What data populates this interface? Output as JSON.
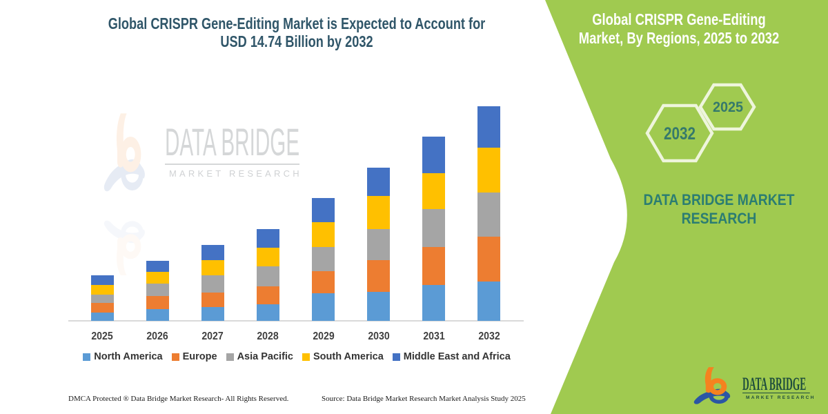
{
  "colors": {
    "panel-green": "#A0CA50",
    "title-teal": "#305669",
    "hex-year-teal": "#35796B",
    "brand-teal": "#2B7D72",
    "logo-orange": "#F5821F",
    "logo-blue": "#2B56A4",
    "logo-text-green": "#1E4D3D",
    "axis-gray": "#D9D9D9"
  },
  "main_title": {
    "line1": "Global CRISPR Gene-Editing Market is Expected to Account for",
    "line2": "USD 14.74 Billion by 2032"
  },
  "chart_data": {
    "type": "bar",
    "stacked": true,
    "unit": "USD Billion",
    "title": "Global CRISPR Gene-Editing Market is Expected to Account for USD 14.74 Billion by 2032",
    "categories": [
      "2025",
      "2026",
      "2027",
      "2028",
      "2029",
      "2030",
      "2031",
      "2032"
    ],
    "series": [
      {
        "name": "North America",
        "color": "#5B9BD5",
        "values": [
          0.57,
          0.81,
          0.95,
          1.14,
          1.9,
          1.99,
          2.46,
          2.7
        ]
      },
      {
        "name": "Europe",
        "color": "#ED7D31",
        "values": [
          0.66,
          0.9,
          1.0,
          1.23,
          1.52,
          2.18,
          2.61,
          3.08
        ]
      },
      {
        "name": "Asia Pacific",
        "color": "#A5A5A5",
        "values": [
          0.55,
          0.85,
          1.18,
          1.37,
          1.66,
          2.13,
          2.61,
          3.03
        ]
      },
      {
        "name": "South America",
        "color": "#FFC000",
        "values": [
          0.7,
          0.81,
          1.05,
          1.28,
          1.71,
          2.3,
          2.46,
          3.08
        ]
      },
      {
        "name": "Middle East and Africa",
        "color": "#4472C4",
        "values": [
          0.64,
          0.76,
          1.04,
          1.28,
          1.66,
          1.9,
          2.51,
          2.85
        ]
      }
    ],
    "totals": [
      3.12,
      4.13,
      5.22,
      6.3,
      8.45,
      10.5,
      12.65,
      14.74
    ],
    "ylim": [
      0,
      15
    ],
    "legend_position": "bottom",
    "gridlines": false
  },
  "watermark": {
    "line1": "DATA BRIDGE",
    "line2": "MARKET RESEARCH"
  },
  "side_panel": {
    "title_line1": "Global CRISPR Gene-Editing",
    "title_line2": "Market, By Regions, 2025 to 2032",
    "hex_back_year": "2032",
    "hex_front_year": "2025",
    "brand_line1": "DATA BRIDGE MARKET",
    "brand_line2": "RESEARCH"
  },
  "footer": {
    "dmca": "DMCA Protected ® Data Bridge Market Research-  All Rights Reserved.",
    "source": "Source: Data Bridge Market Research  Market Analysis Study 2025"
  },
  "logo": {
    "name": "DATA BRIDGE",
    "sub": "MARKET RESEARCH"
  }
}
